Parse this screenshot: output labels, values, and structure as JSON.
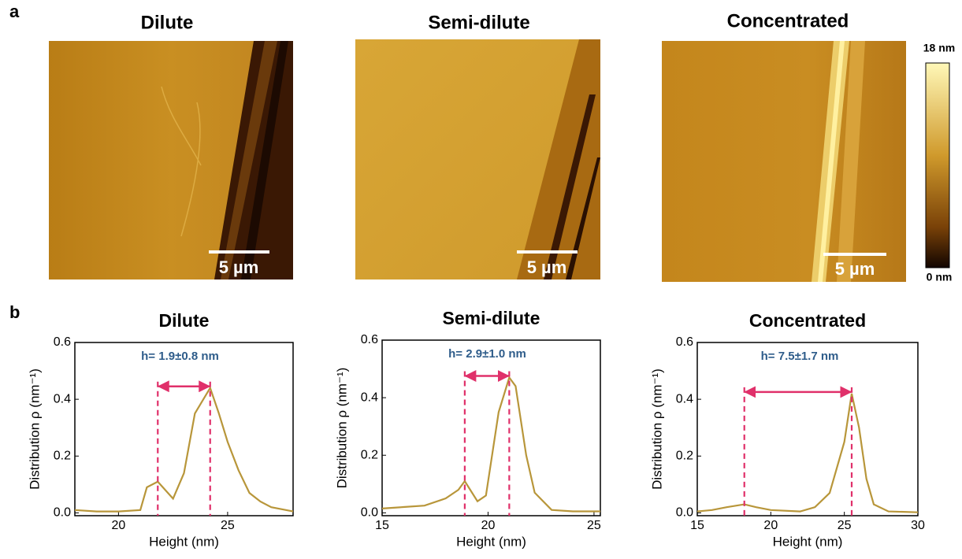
{
  "panel_a": {
    "label": "a",
    "images": [
      {
        "title": "Dilute",
        "scale_bar": "5 µm"
      },
      {
        "title": "Semi-dilute",
        "scale_bar": "5 µm"
      },
      {
        "title": "Concentrated",
        "scale_bar": "5 µm"
      }
    ],
    "colorbar": {
      "max_label": "18 nm",
      "min_label": "0 nm"
    }
  },
  "panel_b": {
    "label": "b"
  },
  "chart_data": [
    {
      "type": "line",
      "title": "Dilute",
      "x_label": "Height  (nm)",
      "y_label": "Distribution ρ (nm⁻¹)",
      "x": [
        18,
        19,
        20,
        21,
        21.3,
        21.8,
        22.5,
        23,
        23.5,
        24.2,
        24.6,
        25,
        25.5,
        26,
        26.5,
        27,
        28
      ],
      "series": [
        {
          "color": "#b8963a",
          "values": [
            0.01,
            0.005,
            0.005,
            0.01,
            0.09,
            0.11,
            0.05,
            0.14,
            0.35,
            0.44,
            0.35,
            0.25,
            0.15,
            0.07,
            0.04,
            0.02,
            0.005
          ]
        }
      ],
      "xlim": [
        18,
        28
      ],
      "ylim": [
        -0.01,
        0.6
      ],
      "xticks": [
        20,
        25
      ],
      "yticks": [
        {
          "value": 0,
          "label": "0.0"
        },
        0.2,
        0.4,
        0.6
      ],
      "markers": [
        21.8,
        24.2
      ],
      "marker_color": "#e0306a",
      "annotation": "h= 1.9±0.8 nm"
    },
    {
      "type": "line",
      "title": "Semi-dilute",
      "x_label": "Height (nm)",
      "y_label": "Distribution ρ (nm⁻¹)",
      "x": [
        15,
        16,
        17,
        18,
        18.6,
        18.9,
        19.5,
        19.9,
        20.5,
        21,
        21.3,
        21.8,
        22.2,
        23,
        24,
        25.3
      ],
      "series": [
        {
          "color": "#b8963a",
          "values": [
            0.015,
            0.02,
            0.025,
            0.05,
            0.08,
            0.11,
            0.04,
            0.06,
            0.35,
            0.47,
            0.44,
            0.2,
            0.07,
            0.01,
            0.005,
            0.005
          ]
        }
      ],
      "xlim": [
        15,
        25.3
      ],
      "ylim": [
        -0.01,
        0.6
      ],
      "xticks": [
        15,
        20,
        25
      ],
      "yticks": [
        {
          "value": 0,
          "label": "0.0"
        },
        0.2,
        0.4,
        0.6
      ],
      "markers": [
        18.9,
        21
      ],
      "marker_color": "#e0306a",
      "annotation": "h= 2.9±1.0 nm"
    },
    {
      "type": "line",
      "title": "Concentrated",
      "x_label": "Height (nm)",
      "y_label": "Distribution ρ (nm⁻¹)",
      "x": [
        15,
        16,
        17,
        18.2,
        19,
        20,
        22,
        23,
        24,
        25,
        25.5,
        26,
        26.5,
        27,
        28,
        30
      ],
      "series": [
        {
          "color": "#b8963a",
          "values": [
            0.005,
            0.01,
            0.02,
            0.03,
            0.02,
            0.01,
            0.005,
            0.02,
            0.07,
            0.25,
            0.42,
            0.3,
            0.12,
            0.03,
            0.005,
            0.002
          ]
        }
      ],
      "xlim": [
        15,
        30
      ],
      "ylim": [
        -0.01,
        0.6
      ],
      "xticks": [
        15,
        20,
        25,
        30
      ],
      "yticks": [
        {
          "value": 0,
          "label": "0.0"
        },
        0.2,
        0.4,
        0.6
      ],
      "markers": [
        18.2,
        25.5
      ],
      "marker_color": "#e0306a",
      "annotation": "h= 7.5±1.7 nm"
    }
  ]
}
